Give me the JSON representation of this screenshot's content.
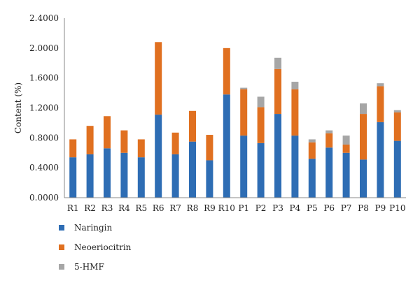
{
  "chart_data": {
    "type": "bar",
    "stacked": true,
    "categories": [
      "R1",
      "R2",
      "R3",
      "R4",
      "R5",
      "R6",
      "R7",
      "R8",
      "R9",
      "R10",
      "P1",
      "P2",
      "P3",
      "P4",
      "P5",
      "P6",
      "P7",
      "P8",
      "P9",
      "P10"
    ],
    "series": [
      {
        "name": "Naringin",
        "color": "#2e6db4",
        "values": [
          0.54,
          0.58,
          0.66,
          0.6,
          0.54,
          1.11,
          0.58,
          0.75,
          0.5,
          1.38,
          0.83,
          0.73,
          1.12,
          0.83,
          0.52,
          0.67,
          0.6,
          0.51,
          1.01,
          0.76
        ]
      },
      {
        "name": "Neoeriocitrin",
        "color": "#e07020",
        "values": [
          0.24,
          0.38,
          0.43,
          0.3,
          0.24,
          0.97,
          0.29,
          0.41,
          0.34,
          0.62,
          0.62,
          0.48,
          0.6,
          0.62,
          0.22,
          0.19,
          0.11,
          0.61,
          0.48,
          0.38
        ]
      },
      {
        "name": "5-HMF",
        "color": "#a6a6a6",
        "values": [
          0,
          0,
          0,
          0,
          0,
          0,
          0,
          0,
          0,
          0,
          0.02,
          0.14,
          0.15,
          0.1,
          0.04,
          0.04,
          0.12,
          0.14,
          0.04,
          0.03
        ]
      }
    ],
    "ylabel": "Content (%)",
    "ylim": [
      0,
      2.4
    ],
    "yticks": [
      "0.0000",
      "0.4000",
      "0.8000",
      "1.2000",
      "1.6000",
      "2.0000",
      "2.4000"
    ],
    "grid": false,
    "legend_position": "bottom-left"
  }
}
